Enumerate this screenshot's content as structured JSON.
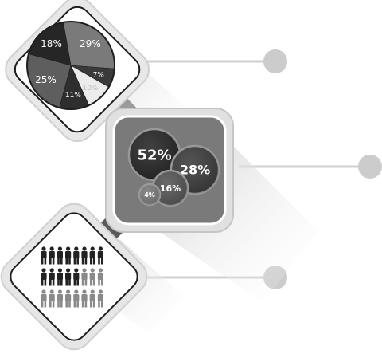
{
  "palette": {
    "dark": "#2a2a2a",
    "mid_dark": "#4a4a4a",
    "mid": "#707070",
    "light": "#9a9a9a",
    "pale": "#e6e6e6",
    "connector": "#cccccc",
    "frame": "#d6d6d6"
  },
  "panels": [
    {
      "name": "pie-panel",
      "icon": "pie-chart-icon",
      "slices": [
        {
          "label": "29%",
          "value": 29,
          "color": "#7a7a7a"
        },
        {
          "label": "7%",
          "value": 7,
          "color": "#3a3a3a"
        },
        {
          "label": "10%",
          "value": 10,
          "color": "#ececec"
        },
        {
          "label": "11%",
          "value": 11,
          "color": "#2e2e2e"
        },
        {
          "label": "25%",
          "value": 25,
          "color": "#5e5e5e"
        },
        {
          "label": "18%",
          "value": 18,
          "color": "#262626"
        }
      ]
    },
    {
      "name": "bubble-panel",
      "icon": "bubble-chart-icon",
      "bubbles": [
        {
          "label": "52%",
          "value": 52,
          "color": "#262626"
        },
        {
          "label": "28%",
          "value": 28,
          "color": "#3c3c3c"
        },
        {
          "label": "16%",
          "value": 16,
          "color": "#555555"
        },
        {
          "label": "4%",
          "value": 4,
          "color": "#7a7a7a"
        }
      ]
    },
    {
      "name": "people-panel",
      "icon": "people-icon",
      "rows": [
        {
          "dark": 8,
          "total": 8
        },
        {
          "dark": 5,
          "total": 8
        },
        {
          "dark": 0,
          "total": 8
        }
      ]
    }
  ]
}
